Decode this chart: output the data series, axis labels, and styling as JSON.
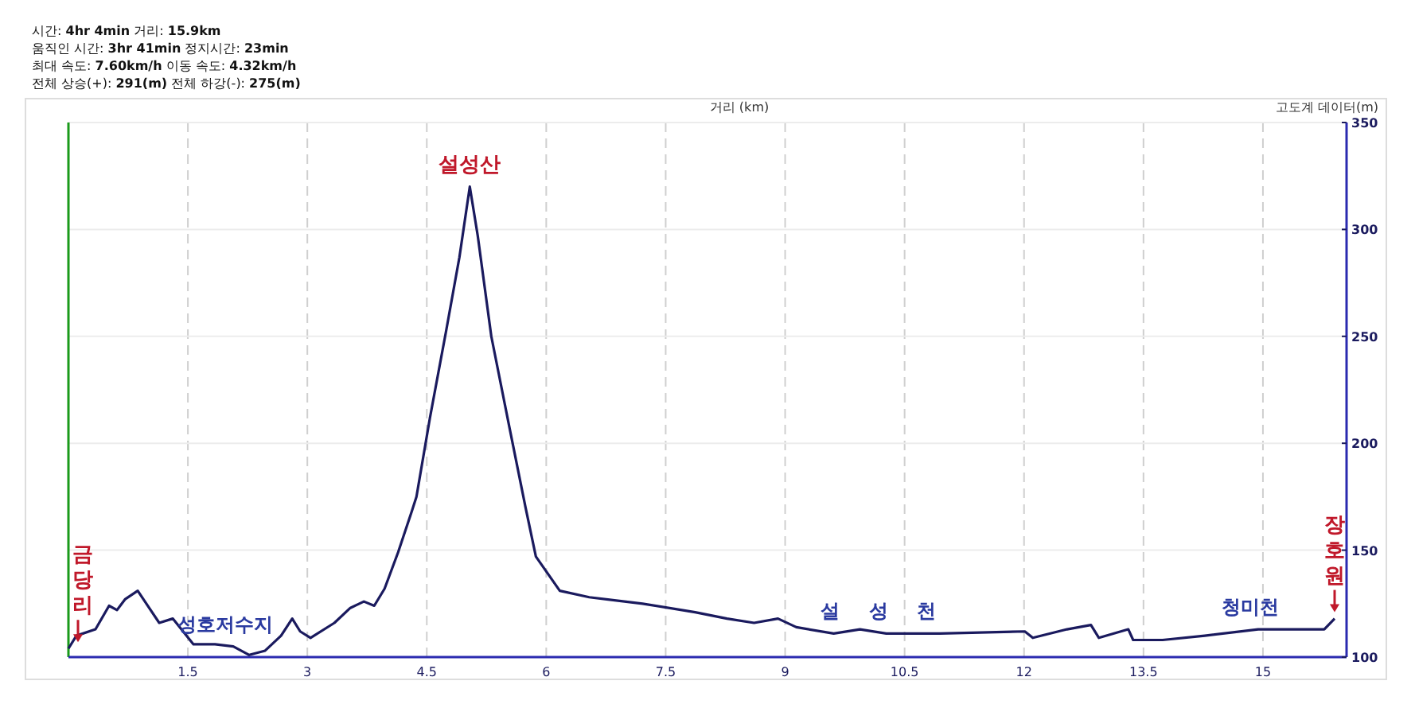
{
  "chart_data": {
    "type": "line",
    "xlabel": "거리 (km)",
    "ylabel": "고도계 데이터(m)",
    "x": [
      0,
      0.1,
      0.34,
      0.51,
      0.61,
      0.71,
      0.87,
      1.14,
      1.31,
      1.57,
      1.84,
      2.07,
      2.27,
      2.47,
      2.67,
      2.81,
      2.91,
      3.04,
      3.34,
      3.54,
      3.71,
      3.84,
      3.97,
      4.14,
      4.31,
      4.37,
      4.54,
      4.74,
      4.91,
      5.04,
      5.14,
      5.31,
      5.54,
      5.74,
      5.87,
      6.17,
      6.54,
      7.21,
      7.87,
      8.27,
      8.61,
      8.91,
      9.14,
      9.61,
      9.94,
      10.27,
      10.94,
      12.01,
      12.11,
      12.54,
      12.84,
      12.94,
      13.31,
      13.37,
      13.74,
      14.27,
      14.94,
      15.77,
      15.9
    ],
    "series": [
      {
        "color": "#1a1a5e",
        "values": [
          104,
          110,
          113,
          124,
          122,
          127,
          131,
          116,
          118,
          106,
          106,
          105,
          101,
          103,
          110,
          118,
          112,
          109,
          116,
          123,
          126,
          124,
          132,
          149,
          168,
          175,
          212,
          252,
          287,
          320,
          297,
          250,
          207,
          170,
          147,
          131,
          128,
          125,
          121,
          118,
          116,
          118,
          114,
          111,
          113,
          111,
          111,
          112,
          109,
          113,
          115,
          109,
          113,
          108,
          108,
          110,
          113,
          113,
          118
        ]
      }
    ],
    "xlim": [
      0,
      16.05
    ],
    "ylim": [
      100,
      350
    ],
    "xticks": [
      1.5,
      3.0,
      4.5,
      6.0,
      7.5,
      9.0,
      10.5,
      12.0,
      13.5,
      15.0
    ],
    "yticks": [
      100,
      150,
      200,
      250,
      300,
      350
    ],
    "grid": true,
    "marker": "none",
    "line_style": "solid",
    "annotations": [
      "시간: **4hr 4min**  거리: **15.9km**",
      "움직인 시간: **3hr 41min**  정지시간: **23min**",
      "최대 속도: **7.60km/h**  이동 속도: **4.32km/h**",
      "전체 상승(+): **291(m)**  전체 하강(-): **275(m)**",
      {
        "text": "설성산",
        "x": 5.04,
        "y": 320
      },
      {
        "text": "금당리",
        "x": 0,
        "y": 104
      },
      {
        "text": "장호원",
        "x": 15.9,
        "y": 118
      },
      {
        "text": "성호저수지",
        "x": 2.07,
        "y": 105
      },
      {
        "text": "설 성 천",
        "x": 10.27,
        "y": 111
      },
      {
        "text": "청미천",
        "x": 14.94,
        "y": 113
      }
    ]
  }
}
